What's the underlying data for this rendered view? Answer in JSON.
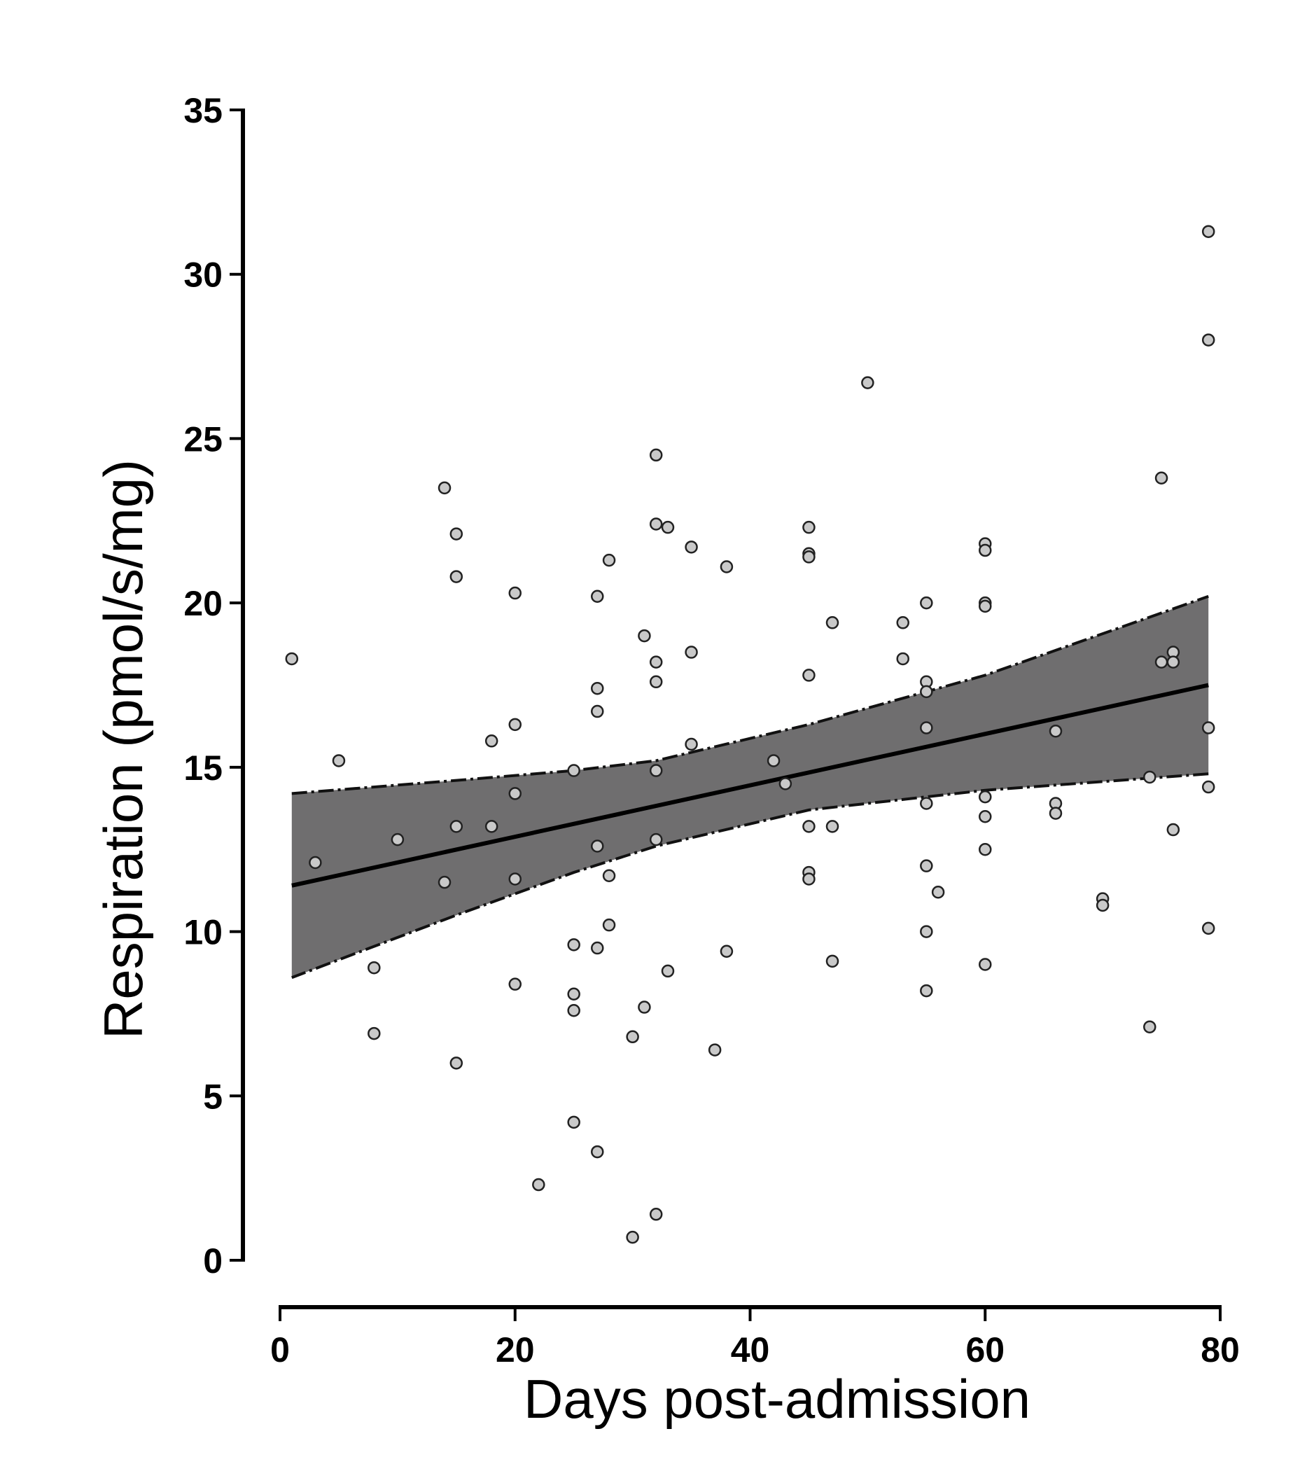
{
  "chart_data": {
    "type": "scatter",
    "title": "",
    "xlabel": "Days post-admission",
    "ylabel": "Respiration (pmol/s/mg)",
    "xlim": [
      0,
      80
    ],
    "ylim": [
      0,
      35
    ],
    "xticks": [
      "0",
      "20",
      "40",
      "60",
      "80"
    ],
    "yticks": [
      "0",
      "5",
      "10",
      "15",
      "20",
      "25",
      "30",
      "35"
    ],
    "grid": false,
    "colors": {
      "band": "#6f6e6f",
      "point_fill": "#c9c9c9",
      "point_stroke": "#222222",
      "line": "#000000"
    },
    "regression": {
      "x": [
        1,
        79
      ],
      "y": [
        11.4,
        17.5
      ]
    },
    "confidence_band": {
      "x": [
        1,
        15,
        25,
        32,
        45,
        60,
        79
      ],
      "upper": [
        14.2,
        14.6,
        14.9,
        15.2,
        16.3,
        17.8,
        20.2
      ],
      "lower": [
        8.6,
        10.5,
        11.8,
        12.6,
        13.7,
        14.3,
        14.8
      ]
    },
    "points": [
      [
        1,
        18.3
      ],
      [
        3,
        12.1
      ],
      [
        5,
        15.2
      ],
      [
        8,
        8.9
      ],
      [
        8,
        6.9
      ],
      [
        10,
        12.8
      ],
      [
        14,
        23.5
      ],
      [
        14,
        11.5
      ],
      [
        15,
        22.1
      ],
      [
        15,
        20.8
      ],
      [
        15,
        13.2
      ],
      [
        15,
        6.0
      ],
      [
        18,
        15.8
      ],
      [
        18,
        13.2
      ],
      [
        20,
        20.3
      ],
      [
        20,
        16.3
      ],
      [
        20,
        14.2
      ],
      [
        20,
        11.6
      ],
      [
        20,
        8.4
      ],
      [
        22,
        2.3
      ],
      [
        25,
        14.9
      ],
      [
        25,
        9.6
      ],
      [
        25,
        8.1
      ],
      [
        25,
        7.6
      ],
      [
        25,
        4.2
      ],
      [
        27,
        20.2
      ],
      [
        27,
        17.4
      ],
      [
        27,
        16.7
      ],
      [
        27,
        12.6
      ],
      [
        27,
        9.5
      ],
      [
        27,
        3.3
      ],
      [
        28,
        21.3
      ],
      [
        28,
        11.7
      ],
      [
        28,
        10.2
      ],
      [
        30,
        6.8
      ],
      [
        30,
        0.7
      ],
      [
        31,
        19.0
      ],
      [
        31,
        7.7
      ],
      [
        32,
        24.5
      ],
      [
        32,
        22.4
      ],
      [
        33,
        22.3
      ],
      [
        32,
        18.2
      ],
      [
        32,
        17.6
      ],
      [
        32,
        14.9
      ],
      [
        32,
        12.8
      ],
      [
        32,
        1.4
      ],
      [
        33,
        8.8
      ],
      [
        35,
        21.7
      ],
      [
        35,
        18.5
      ],
      [
        35,
        15.7
      ],
      [
        37,
        6.4
      ],
      [
        38,
        21.1
      ],
      [
        38,
        9.4
      ],
      [
        42,
        15.2
      ],
      [
        43,
        14.5
      ],
      [
        45,
        22.3
      ],
      [
        45,
        21.5
      ],
      [
        45,
        21.4
      ],
      [
        45,
        17.8
      ],
      [
        45,
        13.2
      ],
      [
        45,
        11.8
      ],
      [
        45,
        11.6
      ],
      [
        47,
        19.4
      ],
      [
        47,
        13.2
      ],
      [
        47,
        9.1
      ],
      [
        50,
        26.7
      ],
      [
        53,
        19.4
      ],
      [
        53,
        18.3
      ],
      [
        55,
        20.0
      ],
      [
        55,
        17.6
      ],
      [
        55,
        17.3
      ],
      [
        55,
        16.2
      ],
      [
        55,
        13.9
      ],
      [
        55,
        12.0
      ],
      [
        55,
        10.0
      ],
      [
        55,
        8.2
      ],
      [
        56,
        11.2
      ],
      [
        60,
        21.8
      ],
      [
        60,
        21.6
      ],
      [
        60,
        20.0
      ],
      [
        60,
        19.9
      ],
      [
        60,
        14.1
      ],
      [
        60,
        13.5
      ],
      [
        60,
        12.5
      ],
      [
        60,
        9.0
      ],
      [
        66,
        16.1
      ],
      [
        66,
        13.9
      ],
      [
        66,
        13.6
      ],
      [
        70,
        11.0
      ],
      [
        70,
        10.8
      ],
      [
        74,
        14.7
      ],
      [
        74,
        7.1
      ],
      [
        75,
        23.8
      ],
      [
        75,
        18.2
      ],
      [
        76,
        18.5
      ],
      [
        76,
        18.2
      ],
      [
        76,
        13.1
      ],
      [
        79,
        31.3
      ],
      [
        79,
        28.0
      ],
      [
        79,
        16.2
      ],
      [
        79,
        14.4
      ],
      [
        79,
        10.1
      ]
    ]
  }
}
